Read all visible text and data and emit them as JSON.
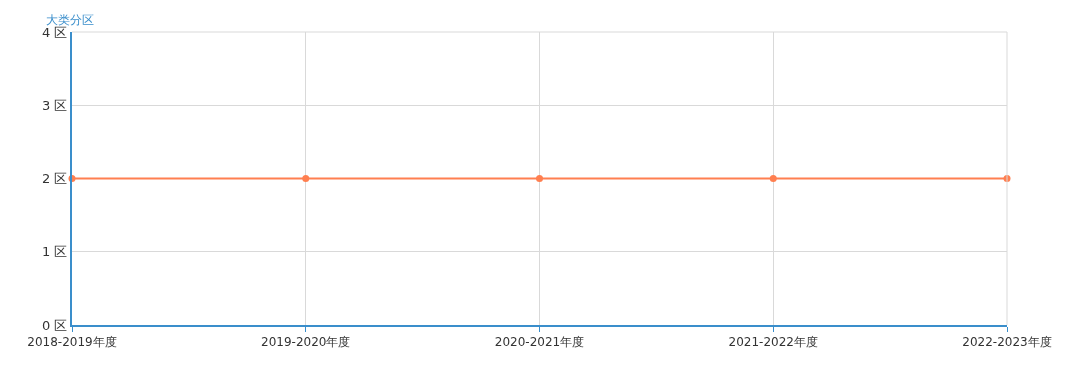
{
  "chart_data": {
    "type": "line",
    "ylabel": "大类分区",
    "categories": [
      "2018-2019年度",
      "2019-2020年度",
      "2020-2021年度",
      "2021-2022年度",
      "2022-2023年度"
    ],
    "series": [
      {
        "color": "#ff7f50",
        "values": [
          2,
          2,
          2,
          2,
          2
        ]
      }
    ],
    "ylim": [
      0,
      4
    ],
    "yticks": [
      {
        "value": 0,
        "label": "0 区"
      },
      {
        "value": 1,
        "label": "1 区"
      },
      {
        "value": 2,
        "label": "2 区"
      },
      {
        "value": 3,
        "label": "3 区"
      },
      {
        "value": 4,
        "label": "4 区"
      }
    ],
    "grid": true,
    "marker": "circle",
    "line_style": "solid"
  }
}
